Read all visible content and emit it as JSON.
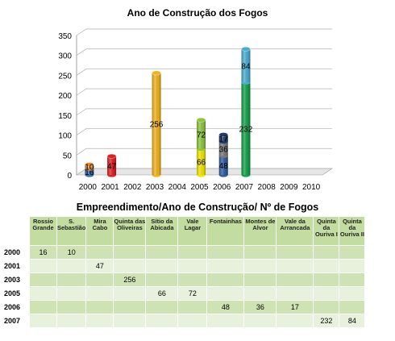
{
  "chart_data": {
    "type": "bar",
    "title": "Ano de Construção dos Fogos",
    "categories": [
      "2000",
      "2001",
      "2002",
      "2003",
      "2004",
      "2005",
      "2006",
      "2007",
      "2008",
      "2009",
      "2010"
    ],
    "stacked": true,
    "ylim": [
      0,
      350
    ],
    "yticks": [
      0,
      50,
      100,
      150,
      200,
      250,
      300,
      350
    ],
    "grid": true,
    "xlabel": "",
    "ylabel": "",
    "stacks": [
      {
        "x": "2000",
        "segments": [
          {
            "value": 16,
            "color": "#3f6fb5"
          },
          {
            "value": 10,
            "color": "#e38c36"
          }
        ]
      },
      {
        "x": "2001",
        "segments": [
          {
            "value": 47,
            "color": "#e01f23"
          }
        ]
      },
      {
        "x": "2003",
        "segments": [
          {
            "value": 256,
            "color": "#f2b21c"
          }
        ]
      },
      {
        "x": "2005",
        "segments": [
          {
            "value": 66,
            "color": "#f2e600"
          },
          {
            "value": 72,
            "color": "#8cc63f"
          }
        ]
      },
      {
        "x": "2006",
        "segments": [
          {
            "value": 48,
            "color": "#2f5da0"
          },
          {
            "value": 36,
            "color": "#7a7a7a"
          },
          {
            "value": 17,
            "color": "#1f3c6e"
          }
        ]
      },
      {
        "x": "2007",
        "segments": [
          {
            "value": 232,
            "color": "#12a24a"
          },
          {
            "value": 84,
            "color": "#4aaed2"
          }
        ]
      }
    ]
  },
  "table": {
    "title": "Empreendimento/Ano de Construção/ Nº de Fogos",
    "columns": [
      "Rossio Grande",
      "S. Sebastião",
      "Mira Cabo",
      "Quinta das Oliveiras",
      "Sítio da Abicada",
      "Vale Lagar",
      "Fontainhas",
      "Montes de Alvor",
      "Vale da Arrancada",
      "Quinta da Ouriva I",
      "Quinta da Ouriva II"
    ],
    "rows": [
      {
        "year": "2000",
        "cells": [
          "16",
          "10",
          "",
          "",
          "",
          "",
          "",
          "",
          "",
          "",
          ""
        ]
      },
      {
        "year": "2001",
        "cells": [
          "",
          "",
          "47",
          "",
          "",
          "",
          "",
          "",
          "",
          "",
          ""
        ]
      },
      {
        "year": "2003",
        "cells": [
          "",
          "",
          "",
          "256",
          "",
          "",
          "",
          "",
          "",
          "",
          ""
        ]
      },
      {
        "year": "2005",
        "cells": [
          "",
          "",
          "",
          "",
          "66",
          "72",
          "",
          "",
          "",
          "",
          ""
        ]
      },
      {
        "year": "2006",
        "cells": [
          "",
          "",
          "",
          "",
          "",
          "",
          "48",
          "36",
          "17",
          "",
          ""
        ]
      },
      {
        "year": "2007",
        "cells": [
          "",
          "",
          "",
          "",
          "",
          "",
          "",
          "",
          "",
          "232",
          "84"
        ]
      }
    ]
  }
}
